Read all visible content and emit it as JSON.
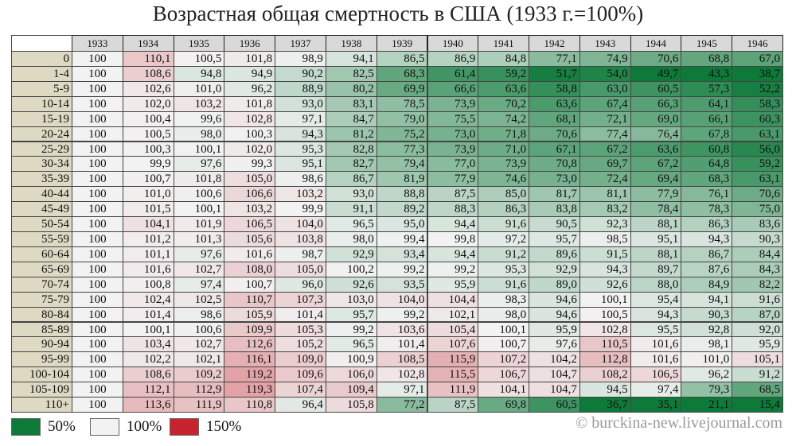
{
  "title": "Возрастная общая смертность в США (1933 г.=100%)",
  "table": {
    "columns": [
      1933,
      1934,
      1935,
      1936,
      1937,
      1938,
      1939,
      1940,
      1941,
      1942,
      1943,
      1944,
      1945,
      1946
    ],
    "rows": [
      {
        "label": "0",
        "cells": [
          "100",
          "110,1",
          "100,5",
          "101,8",
          "98,9",
          "94,1",
          "86,5",
          "86,9",
          "84,8",
          "77,1",
          "74,9",
          "70,6",
          "68,8",
          "67,0"
        ]
      },
      {
        "label": "1-4",
        "cells": [
          "100",
          "108,6",
          "94,8",
          "94,9",
          "90,2",
          "82,5",
          "68,3",
          "61,4",
          "59,2",
          "51,7",
          "54,0",
          "49,7",
          "43,3",
          "38,7"
        ]
      },
      {
        "label": "5-9",
        "cells": [
          "100",
          "102,6",
          "101,0",
          "96,2",
          "88,9",
          "80,2",
          "69,9",
          "66,6",
          "63,6",
          "58,8",
          "63,0",
          "60,5",
          "57,3",
          "52,2"
        ]
      },
      {
        "label": "10-14",
        "cells": [
          "100",
          "102,0",
          "103,2",
          "101,8",
          "93,0",
          "83,1",
          "78,5",
          "73,9",
          "70,2",
          "63,6",
          "67,4",
          "66,3",
          "64,1",
          "58,3"
        ]
      },
      {
        "label": "15-19",
        "cells": [
          "100",
          "100,4",
          "99,6",
          "102,8",
          "97,1",
          "84,7",
          "79,0",
          "75,5",
          "74,2",
          "68,1",
          "72,1",
          "69,0",
          "66,1",
          "60,3"
        ]
      },
      {
        "label": "20-24",
        "cells": [
          "100",
          "100,5",
          "98,0",
          "100,3",
          "94,3",
          "81,2",
          "75,2",
          "73,0",
          "71,8",
          "70,6",
          "77,4",
          "76,4",
          "67,8",
          "63,1"
        ]
      },
      {
        "label": "25-29",
        "cells": [
          "100",
          "100,3",
          "100,1",
          "102,0",
          "95,3",
          "82,8",
          "77,3",
          "73,9",
          "71,0",
          "67,1",
          "67,2",
          "63,6",
          "60,8",
          "56,0"
        ]
      },
      {
        "label": "30-34",
        "cells": [
          "100",
          "99,9",
          "97,6",
          "99,3",
          "95,1",
          "82,7",
          "79,4",
          "77,0",
          "73,9",
          "70,8",
          "69,7",
          "67,2",
          "64,8",
          "59,2"
        ]
      },
      {
        "label": "35-39",
        "cells": [
          "100",
          "100,7",
          "101,8",
          "105,0",
          "98,6",
          "86,7",
          "81,9",
          "77,9",
          "74,6",
          "73,0",
          "72,4",
          "69,4",
          "68,3",
          "63,1"
        ]
      },
      {
        "label": "40-44",
        "cells": [
          "100",
          "101,0",
          "100,6",
          "106,6",
          "103,2",
          "93,0",
          "88,8",
          "87,5",
          "85,0",
          "81,7",
          "81,1",
          "77,9",
          "76,1",
          "70,6"
        ]
      },
      {
        "label": "45-49",
        "cells": [
          "100",
          "101,5",
          "100,1",
          "103,2",
          "99,9",
          "91,1",
          "89,2",
          "88,3",
          "86,3",
          "83,8",
          "83,2",
          "78,4",
          "78,3",
          "75,0"
        ]
      },
      {
        "label": "50-54",
        "cells": [
          "100",
          "104,1",
          "101,9",
          "106,5",
          "104,0",
          "96,5",
          "95,0",
          "94,4",
          "91,6",
          "90,5",
          "92,3",
          "88,1",
          "86,3",
          "83,6"
        ]
      },
      {
        "label": "55-59",
        "cells": [
          "100",
          "101,2",
          "101,3",
          "105,6",
          "103,8",
          "98,0",
          "99,4",
          "99,8",
          "97,2",
          "95,7",
          "98,5",
          "95,1",
          "94,3",
          "90,3"
        ]
      },
      {
        "label": "60-64",
        "cells": [
          "100",
          "101,1",
          "97,6",
          "101,6",
          "98,7",
          "92,9",
          "93,4",
          "94,4",
          "91,2",
          "89,6",
          "91,5",
          "88,1",
          "86,7",
          "84,4"
        ]
      },
      {
        "label": "65-69",
        "cells": [
          "100",
          "101,6",
          "102,7",
          "108,0",
          "105,0",
          "100,2",
          "99,2",
          "99,2",
          "95,3",
          "92,9",
          "94,3",
          "89,7",
          "87,6",
          "84,3"
        ]
      },
      {
        "label": "70-74",
        "cells": [
          "100",
          "100,8",
          "97,4",
          "100,7",
          "96,0",
          "92,6",
          "93,5",
          "95,9",
          "91,6",
          "89,0",
          "92,6",
          "88,0",
          "84,9",
          "82,2"
        ]
      },
      {
        "label": "75-79",
        "cells": [
          "100",
          "102,4",
          "102,5",
          "110,7",
          "107,3",
          "103,0",
          "104,0",
          "104,4",
          "98,3",
          "94,6",
          "100,1",
          "95,4",
          "94,1",
          "91,6"
        ]
      },
      {
        "label": "80-84",
        "cells": [
          "100",
          "101,4",
          "98,6",
          "105,9",
          "101,4",
          "95,7",
          "99,2",
          "102,1",
          "98,0",
          "94,6",
          "100,5",
          "94,3",
          "90,3",
          "87,0"
        ]
      },
      {
        "label": "85-89",
        "cells": [
          "100",
          "100,1",
          "100,6",
          "109,9",
          "105,3",
          "99,2",
          "103,6",
          "105,4",
          "100,1",
          "95,9",
          "102,8",
          "95,5",
          "92,8",
          "92,0"
        ]
      },
      {
        "label": "90-94",
        "cells": [
          "100",
          "103,4",
          "102,7",
          "112,6",
          "105,2",
          "96,5",
          "101,4",
          "107,6",
          "100,7",
          "97,6",
          "110,5",
          "101,6",
          "98,1",
          "95,9"
        ]
      },
      {
        "label": "95-99",
        "cells": [
          "100",
          "102,2",
          "102,1",
          "116,1",
          "109,0",
          "100,9",
          "108,5",
          "115,9",
          "107,2",
          "104,2",
          "112,8",
          "101,6",
          "101,0",
          "105,1"
        ]
      },
      {
        "label": "100-104",
        "cells": [
          "100",
          "108,6",
          "109,2",
          "119,2",
          "109,6",
          "106,0",
          "102,8",
          "115,5",
          "106,7",
          "104,7",
          "108,2",
          "106,5",
          "96,2",
          "91,2"
        ]
      },
      {
        "label": "105-109",
        "cells": [
          "100",
          "112,1",
          "112,9",
          "119,3",
          "107,4",
          "109,4",
          "97,1",
          "111,9",
          "104,1",
          "104,7",
          "94,5",
          "97,4",
          "79,3",
          "68,5"
        ]
      },
      {
        "label": "110+",
        "cells": [
          "100",
          "113,6",
          "111,9",
          "110,8",
          "96,4",
          "105,8",
          "77,2",
          "87,5",
          "69,8",
          "60,5",
          "36,7",
          "35,1",
          "21,1",
          "15,4"
        ]
      }
    ]
  },
  "legend": [
    {
      "value": 50,
      "label": "50%",
      "color": "#0e7a3a"
    },
    {
      "value": 100,
      "label": "100%",
      "color": "#f2f2f2"
    },
    {
      "value": 150,
      "label": "150%",
      "color": "#c8242e"
    }
  ],
  "watermark": "© burckina-new.livejournal.com"
}
